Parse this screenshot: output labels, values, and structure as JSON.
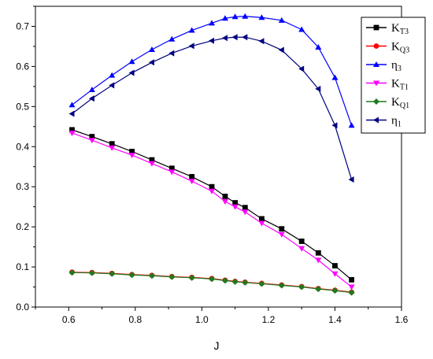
{
  "chart_data": {
    "type": "line",
    "xlabel": "J",
    "ylabel": "",
    "xlim": [
      0.5,
      1.6
    ],
    "ylim": [
      0.0,
      0.75
    ],
    "xticks": [
      "0.6",
      "0.8",
      "1.0",
      "1.2",
      "1.4",
      "1.6"
    ],
    "yticks": [
      "0.0",
      "0.1",
      "0.2",
      "0.3",
      "0.4",
      "0.5",
      "0.6",
      "0.7"
    ],
    "grid": false,
    "legend_position": "top-right",
    "series": [
      {
        "name": "KT3",
        "label_main": "K",
        "label_sub": "T3",
        "color": "#000000",
        "marker": "square",
        "x": [
          0.61,
          0.67,
          0.73,
          0.79,
          0.85,
          0.91,
          0.97,
          1.03,
          1.07,
          1.1,
          1.13,
          1.18,
          1.24,
          1.3,
          1.35,
          1.4,
          1.45
        ],
        "y": [
          0.442,
          0.425,
          0.407,
          0.388,
          0.367,
          0.346,
          0.325,
          0.3,
          0.276,
          0.26,
          0.248,
          0.22,
          0.195,
          0.164,
          0.135,
          0.103,
          0.068
        ]
      },
      {
        "name": "KQ3",
        "label_main": "K",
        "label_sub": "Q3",
        "color": "#ff0000",
        "marker": "circle",
        "x": [
          0.61,
          0.67,
          0.73,
          0.79,
          0.85,
          0.91,
          0.97,
          1.03,
          1.07,
          1.1,
          1.13,
          1.18,
          1.24,
          1.3,
          1.35,
          1.4,
          1.45
        ],
        "y": [
          0.087,
          0.086,
          0.084,
          0.081,
          0.079,
          0.076,
          0.074,
          0.071,
          0.067,
          0.064,
          0.062,
          0.059,
          0.055,
          0.051,
          0.046,
          0.042,
          0.037
        ]
      },
      {
        "name": "η3",
        "label_main": "η",
        "label_sub": "3",
        "color": "#0000ff",
        "marker": "triangle-up",
        "x": [
          0.61,
          0.67,
          0.73,
          0.79,
          0.85,
          0.91,
          0.97,
          1.03,
          1.07,
          1.1,
          1.13,
          1.18,
          1.24,
          1.3,
          1.35,
          1.4,
          1.45
        ],
        "y": [
          0.504,
          0.542,
          0.578,
          0.612,
          0.642,
          0.668,
          0.69,
          0.708,
          0.72,
          0.724,
          0.725,
          0.722,
          0.715,
          0.692,
          0.648,
          0.572,
          0.453
        ]
      },
      {
        "name": "KT1",
        "label_main": "K",
        "label_sub": "T1",
        "color": "#ff00ff",
        "marker": "triangle-down",
        "x": [
          0.61,
          0.67,
          0.73,
          0.79,
          0.85,
          0.91,
          0.97,
          1.03,
          1.07,
          1.1,
          1.13,
          1.18,
          1.24,
          1.3,
          1.35,
          1.4,
          1.45
        ],
        "y": [
          0.434,
          0.416,
          0.397,
          0.379,
          0.358,
          0.337,
          0.314,
          0.289,
          0.263,
          0.25,
          0.237,
          0.209,
          0.181,
          0.146,
          0.117,
          0.083,
          0.05
        ]
      },
      {
        "name": "KQ1",
        "label_main": "K",
        "label_sub": "Q1",
        "color": "#1f7a1f",
        "marker": "diamond",
        "x": [
          0.61,
          0.67,
          0.73,
          0.79,
          0.85,
          0.91,
          0.97,
          1.03,
          1.07,
          1.1,
          1.13,
          1.18,
          1.24,
          1.3,
          1.35,
          1.4,
          1.45
        ],
        "y": [
          0.086,
          0.085,
          0.083,
          0.08,
          0.078,
          0.075,
          0.073,
          0.07,
          0.066,
          0.063,
          0.061,
          0.058,
          0.054,
          0.05,
          0.045,
          0.041,
          0.036
        ]
      },
      {
        "name": "η1",
        "label_main": "η",
        "label_sub": "1",
        "color": "#000080",
        "marker": "triangle-left",
        "x": [
          0.61,
          0.67,
          0.73,
          0.79,
          0.85,
          0.91,
          0.97,
          1.03,
          1.07,
          1.1,
          1.13,
          1.18,
          1.24,
          1.3,
          1.35,
          1.4,
          1.45
        ],
        "y": [
          0.482,
          0.52,
          0.553,
          0.584,
          0.61,
          0.633,
          0.651,
          0.664,
          0.671,
          0.673,
          0.673,
          0.663,
          0.641,
          0.594,
          0.544,
          0.453,
          0.318
        ]
      }
    ]
  }
}
